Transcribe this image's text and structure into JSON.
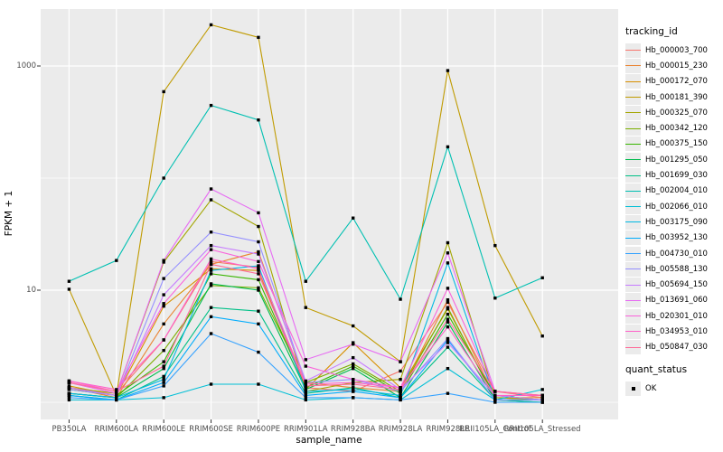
{
  "figure": {
    "bg": "#FFFFFF",
    "panel_bg": "#EBEBEB",
    "grid_major_color": "#FFFFFF",
    "grid_minor_color": "#FFFFFF",
    "tick_label_color": "#4D4D4D",
    "tick_mark_color": "#333333",
    "point_color": "#000000"
  },
  "chart_data": {
    "type": "line",
    "title": "",
    "xlabel": "sample_name",
    "ylabel": "FPKM + 1",
    "y_scale": "log10",
    "y_major_ticks": [
      10,
      1000
    ],
    "y_minor_gridlines": [
      1,
      100
    ],
    "ylim": [
      0.72,
      3200
    ],
    "grid": "on",
    "legend_position": "right",
    "point_marker": "small black square (quant_status OK)",
    "categories": [
      "PB350LA",
      "RRIM600LA",
      "RRIM600LE",
      "RRIM600SE",
      "RRIM600PE",
      "RRIM901LA",
      "RRIM928BA",
      "RRIM928LA",
      "RRIM928LE",
      "RRII105LA_Control",
      "RRII105LA_Stressed"
    ],
    "series": [
      {
        "name": "Hb_000003_700",
        "color": "#F8766D",
        "values": [
          1.5,
          1.2,
          3.6,
          18,
          16,
          1.35,
          1.25,
          1.9,
          7.8,
          1.25,
          1.1
        ]
      },
      {
        "name": "Hb_000015_230",
        "color": "#EA8331",
        "values": [
          1.35,
          1.1,
          5.0,
          17,
          22,
          1.5,
          1.35,
          1.25,
          8.2,
          1.1,
          1.1
        ]
      },
      {
        "name": "Hb_000172_070",
        "color": "#D89000",
        "values": [
          1.4,
          1.15,
          7.2,
          15.5,
          15,
          1.3,
          3.4,
          1.35,
          6.8,
          1.1,
          1.05
        ]
      },
      {
        "name": "Hb_000181_390",
        "color": "#C09B00",
        "values": [
          10.2,
          1.15,
          590,
          2330,
          1800,
          7.0,
          4.8,
          2.3,
          910,
          25,
          3.9
        ]
      },
      {
        "name": "Hb_000325_070",
        "color": "#A3A500",
        "values": [
          1.35,
          1.2,
          17.8,
          64,
          37,
          1.25,
          1.5,
          1.6,
          26.5,
          1.1,
          1.05
        ]
      },
      {
        "name": "Hb_000342_120",
        "color": "#7CAE00",
        "values": [
          1.2,
          1.1,
          2.9,
          11,
          10.5,
          1.5,
          2.2,
          1.25,
          7.0,
          1.05,
          1.05
        ]
      },
      {
        "name": "Hb_000375_150",
        "color": "#39B600",
        "values": [
          1.3,
          1.15,
          2.3,
          14,
          12.4,
          1.35,
          2.1,
          1.2,
          6.1,
          1.15,
          1.05
        ]
      },
      {
        "name": "Hb_001295_050",
        "color": "#00BB4E",
        "values": [
          1.2,
          1.1,
          2.0,
          11.4,
          10,
          1.3,
          2.0,
          1.1,
          5.2,
          1.05,
          1.0
        ]
      },
      {
        "name": "Hb_001699_030",
        "color": "#00C087",
        "values": [
          1.15,
          1.05,
          1.7,
          7.0,
          6.5,
          1.2,
          1.35,
          1.1,
          3.1,
          1.05,
          1.0
        ]
      },
      {
        "name": "Hb_002004_010",
        "color": "#00C0B2",
        "values": [
          12,
          18.4,
          100,
          445,
          330,
          12,
          44,
          8.3,
          190,
          8.5,
          12.9
        ]
      },
      {
        "name": "Hb_002066_010",
        "color": "#00BFD6",
        "values": [
          1.05,
          1.05,
          1.1,
          1.45,
          1.45,
          1.05,
          1.1,
          1.05,
          2.0,
          1.05,
          1.3
        ]
      },
      {
        "name": "Hb_003175_090",
        "color": "#00B9E3",
        "values": [
          1.2,
          1.1,
          1.6,
          15,
          16.5,
          1.25,
          1.3,
          1.15,
          17.5,
          1.05,
          1.05
        ]
      },
      {
        "name": "Hb_003952_130",
        "color": "#00ACFC",
        "values": [
          1.15,
          1.05,
          1.5,
          5.8,
          5.0,
          1.15,
          1.25,
          1.1,
          3.6,
          1.05,
          1.05
        ]
      },
      {
        "name": "Hb_004730_010",
        "color": "#35A2FF",
        "values": [
          1.1,
          1.05,
          1.4,
          4.1,
          2.8,
          1.1,
          1.1,
          1.05,
          1.2,
          1.0,
          1.0
        ]
      },
      {
        "name": "Hb_005588_130",
        "color": "#9590FF",
        "values": [
          1.3,
          1.15,
          12.7,
          33,
          27,
          1.5,
          1.6,
          1.25,
          3.7,
          1.05,
          1.05
        ]
      },
      {
        "name": "Hb_005694_150",
        "color": "#C77CFF",
        "values": [
          1.35,
          1.15,
          9.1,
          25,
          21,
          1.55,
          2.5,
          1.3,
          3.4,
          1.15,
          1.05
        ]
      },
      {
        "name": "Hb_013691_060",
        "color": "#E76BF3",
        "values": [
          1.5,
          1.2,
          18.4,
          80,
          49,
          2.4,
          3.3,
          2.3,
          21.5,
          1.25,
          1.15
        ]
      },
      {
        "name": "Hb_020301_010",
        "color": "#FA62DB",
        "values": [
          1.55,
          1.25,
          7.6,
          23,
          18,
          2.1,
          1.6,
          1.35,
          10.4,
          1.25,
          1.15
        ]
      },
      {
        "name": "Hb_034953_010",
        "color": "#FF61C9",
        "values": [
          1.55,
          1.3,
          3.6,
          19,
          15.5,
          1.45,
          1.5,
          1.35,
          4.7,
          1.15,
          1.15
        ]
      },
      {
        "name": "Hb_050847_030",
        "color": "#FF6A98",
        "values": [
          1.5,
          1.25,
          2.1,
          17,
          14,
          1.4,
          1.45,
          1.3,
          5.5,
          1.25,
          1.15
        ]
      }
    ]
  },
  "legend": {
    "tracking_title": "tracking_id",
    "quant_title": "quant_status",
    "quant_items": [
      {
        "label": "OK",
        "marker": "black-square"
      }
    ]
  }
}
